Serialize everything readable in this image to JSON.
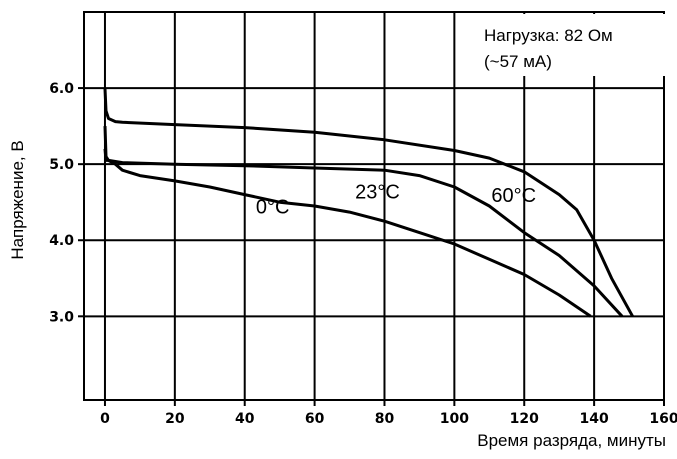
{
  "chart_data": {
    "type": "line",
    "xlabel": "Время разряда, минуты",
    "ylabel": "Напряжение, В",
    "xlim": [
      -6,
      160
    ],
    "ylim": [
      1.9,
      7.0
    ],
    "x_ticks": [
      0,
      20,
      40,
      60,
      80,
      100,
      120,
      140,
      160
    ],
    "y_ticks": [
      3.0,
      4.0,
      5.0,
      6.0
    ],
    "y_tick_labels": [
      "3.0",
      "4.0",
      "5.0",
      "6.0"
    ],
    "grid": true,
    "annotation": [
      "Нагрузка: 82 Ом",
      "(~57 мА)"
    ],
    "series": [
      {
        "name": "0°C",
        "points": [
          [
            0,
            5.5
          ],
          [
            0.3,
            5.1
          ],
          [
            1,
            5.05
          ],
          [
            3,
            5.0
          ],
          [
            5,
            4.92
          ],
          [
            10,
            4.85
          ],
          [
            20,
            4.78
          ],
          [
            30,
            4.7
          ],
          [
            40,
            4.6
          ],
          [
            50,
            4.5
          ],
          [
            60,
            4.45
          ],
          [
            70,
            4.37
          ],
          [
            80,
            4.25
          ],
          [
            90,
            4.1
          ],
          [
            100,
            3.95
          ],
          [
            110,
            3.75
          ],
          [
            120,
            3.55
          ],
          [
            130,
            3.28
          ],
          [
            139,
            3.0
          ]
        ]
      },
      {
        "name": "23°C",
        "points": [
          [
            0,
            5.2
          ],
          [
            0.3,
            5.05
          ],
          [
            1,
            5.05
          ],
          [
            5,
            5.02
          ],
          [
            20,
            5.0
          ],
          [
            40,
            4.98
          ],
          [
            60,
            4.95
          ],
          [
            80,
            4.92
          ],
          [
            90,
            4.85
          ],
          [
            100,
            4.7
          ],
          [
            110,
            4.45
          ],
          [
            120,
            4.1
          ],
          [
            130,
            3.8
          ],
          [
            140,
            3.4
          ],
          [
            148,
            3.0
          ]
        ]
      },
      {
        "name": "60°C",
        "points": [
          [
            0,
            5.99
          ],
          [
            0.3,
            5.7
          ],
          [
            1,
            5.6
          ],
          [
            3,
            5.56
          ],
          [
            5,
            5.55
          ],
          [
            20,
            5.52
          ],
          [
            40,
            5.48
          ],
          [
            60,
            5.42
          ],
          [
            80,
            5.32
          ],
          [
            100,
            5.18
          ],
          [
            110,
            5.08
          ],
          [
            120,
            4.9
          ],
          [
            130,
            4.6
          ],
          [
            135,
            4.4
          ],
          [
            140,
            4.0
          ],
          [
            145,
            3.5
          ],
          [
            151,
            3.0
          ]
        ]
      }
    ],
    "series_labels": [
      {
        "series": "0°C",
        "text": "0°C",
        "x": 48,
        "y": 4.35
      },
      {
        "series": "23°C",
        "text": "23°C",
        "x": 78,
        "y": 4.55
      },
      {
        "series": "60°C",
        "text": "60°C",
        "x": 117,
        "y": 4.5
      }
    ]
  }
}
